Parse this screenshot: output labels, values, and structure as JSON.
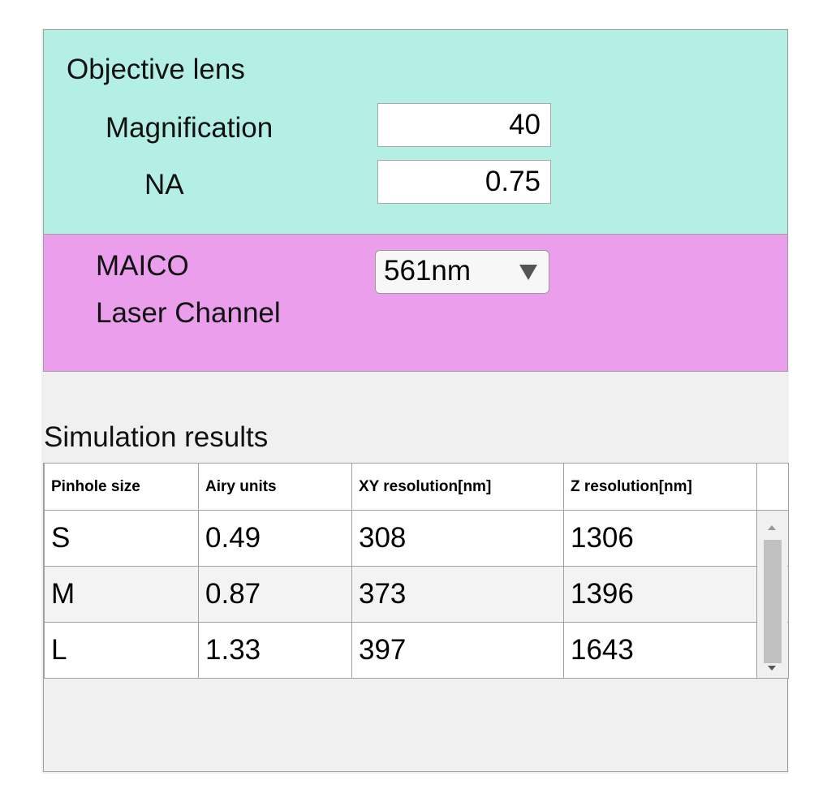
{
  "objective_lens": {
    "title": "Objective lens",
    "fields": [
      {
        "label": "Magnification",
        "value": "40"
      },
      {
        "label": "NA",
        "value": "0.75"
      }
    ]
  },
  "laser": {
    "label_lines": [
      "MAICO",
      "Laser Channel"
    ],
    "selected": "561nm"
  },
  "simulation": {
    "title": "Simulation results",
    "columns": [
      "Pinhole size",
      "Airy units",
      "XY resolution[nm]",
      "Z resolution[nm]"
    ],
    "rows": [
      [
        "S",
        "0.49",
        "308",
        "1306"
      ],
      [
        "M",
        "0.87",
        "373",
        "1396"
      ],
      [
        "L",
        "1.33",
        "397",
        "1643"
      ]
    ]
  }
}
